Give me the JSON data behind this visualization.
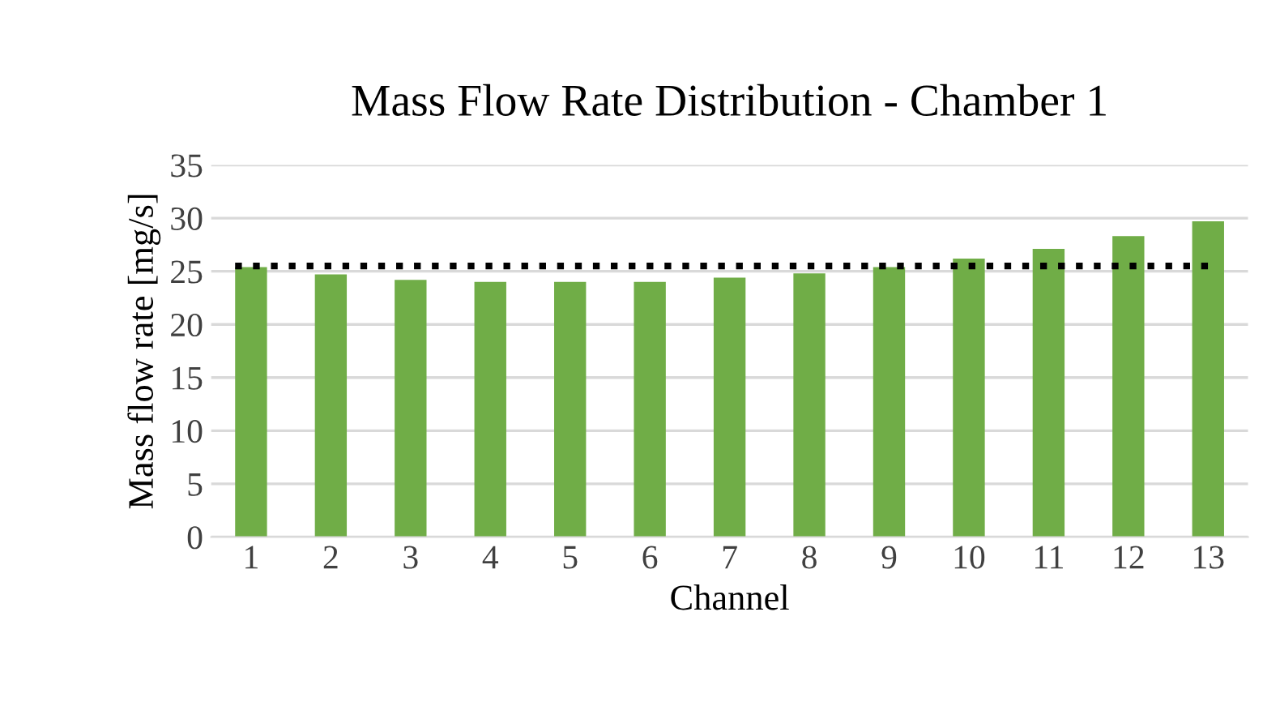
{
  "chart_data": {
    "type": "bar",
    "title": "Mass Flow Rate Distribution - Chamber 1",
    "xlabel": "Channel",
    "ylabel": "Mass flow rate [mg/s]",
    "categories": [
      "1",
      "2",
      "3",
      "4",
      "5",
      "6",
      "7",
      "8",
      "9",
      "10",
      "11",
      "12",
      "13"
    ],
    "values": [
      25.4,
      24.7,
      24.2,
      24.0,
      24.0,
      24.0,
      24.4,
      24.8,
      25.4,
      26.2,
      27.1,
      28.3,
      29.7
    ],
    "color": "#70ad47",
    "ylim": [
      0,
      35
    ],
    "yticks": [
      0,
      5,
      10,
      15,
      20,
      25,
      30,
      35
    ],
    "grid": "y",
    "ref_lines": [
      {
        "axis": "y",
        "value": 25.5,
        "color": "#000000",
        "line_style": "dotted"
      }
    ]
  }
}
